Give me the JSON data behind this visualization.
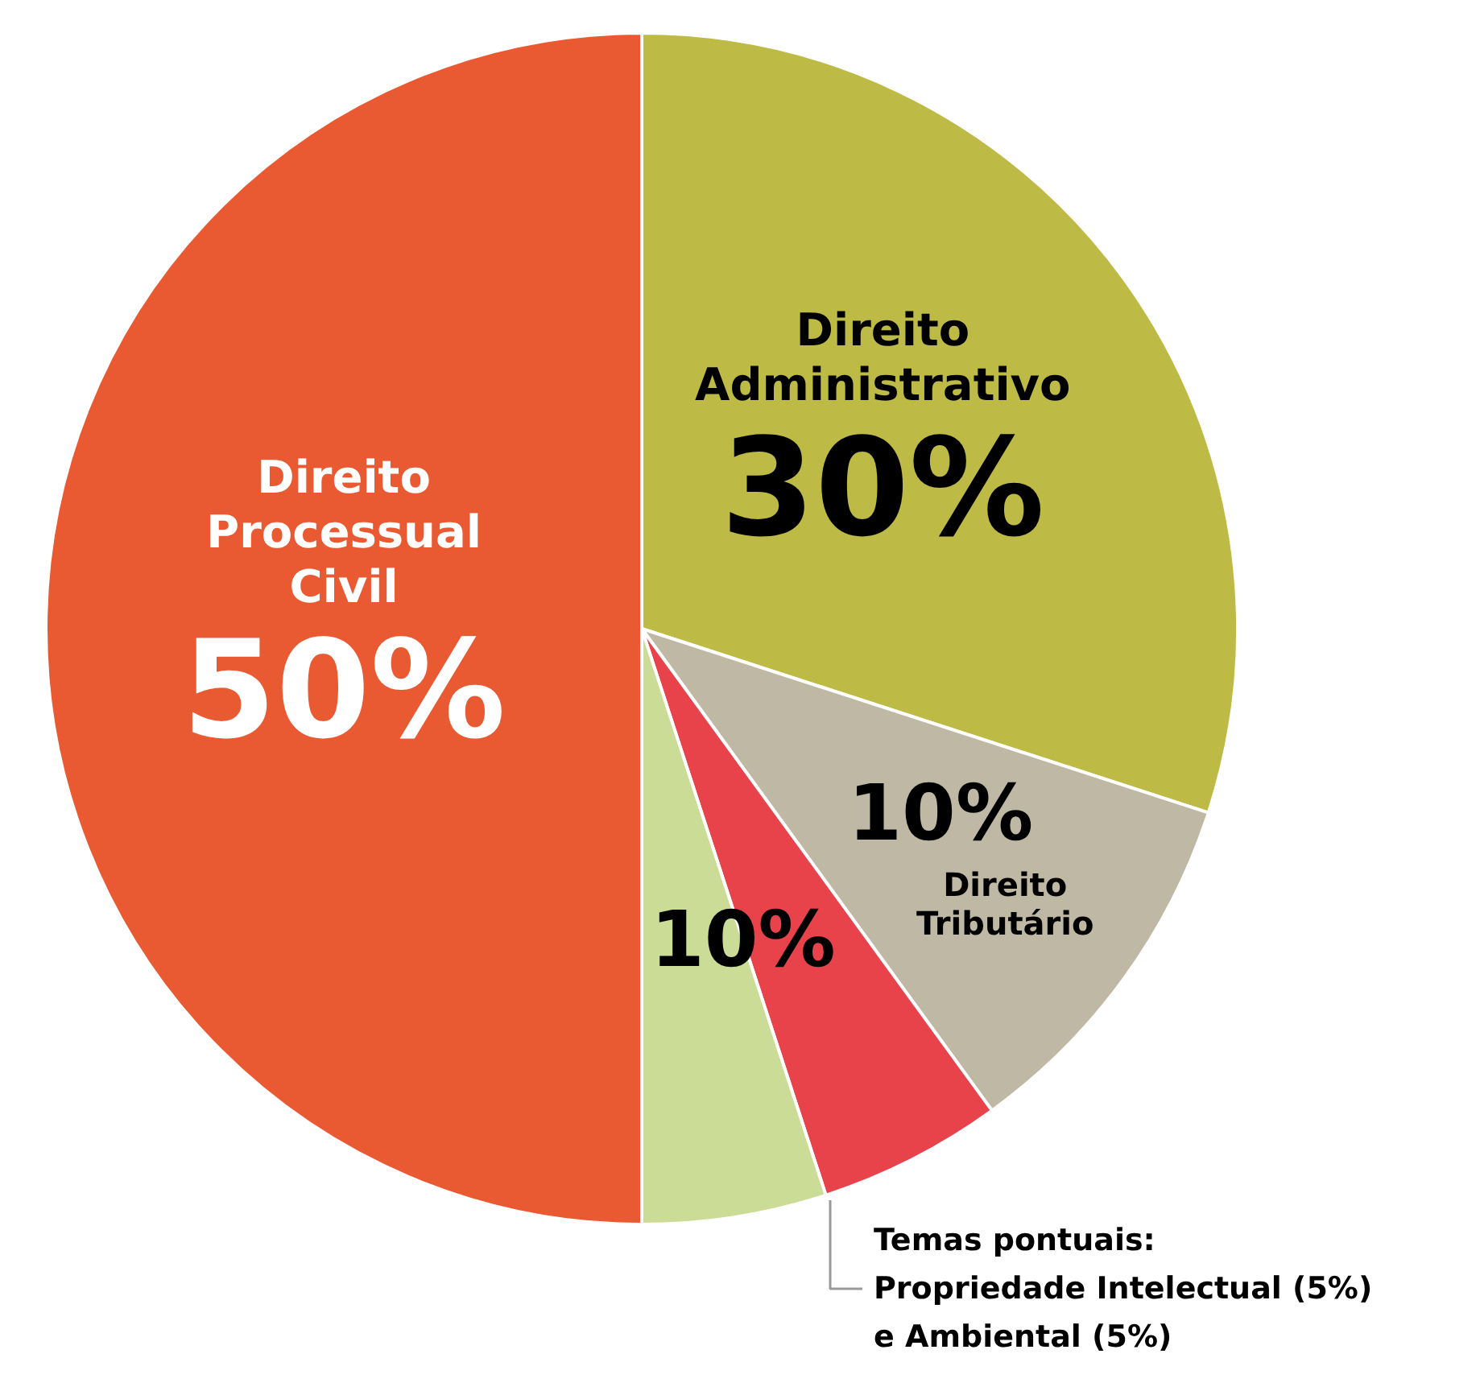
{
  "chart_data": {
    "type": "pie",
    "categories": [
      "Direito Administrativo",
      "Direito Tributário",
      null,
      null,
      "Direito Processual Civil"
    ],
    "values": [
      30,
      10,
      5,
      5,
      50
    ],
    "colors": [
      "#bdbb45",
      "#bfb8a4",
      "#e8434b",
      "#cadc95",
      "#e95a33"
    ],
    "value_labels": [
      "30%",
      "10%",
      null,
      null,
      "50%"
    ],
    "annotations": [
      "10%",
      "Temas pontuais:\nPropriedade Intelectual (5%)\ne Ambiental (5%)"
    ]
  }
}
